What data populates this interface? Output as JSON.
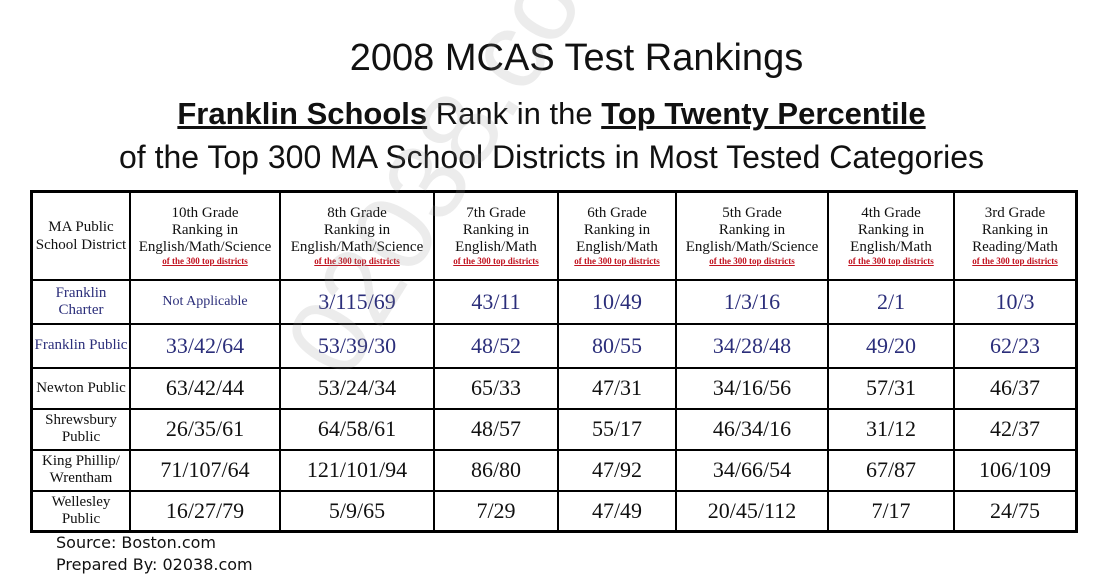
{
  "title": "2008 MCAS Test Rankings",
  "subtitle": {
    "part1": "Franklin Schools",
    "part2": " Rank in the ",
    "part3": "Top Twenty Percentile"
  },
  "subtitle2": "of the Top 300 MA School Districts in Most Tested Categories",
  "watermark": "02038.com",
  "table": {
    "corner": "MA Public School District",
    "headers": [
      {
        "grade": "10th Grade",
        "l1": "Ranking in",
        "l2": "English/Math/Science",
        "sub": "of the 300 top districts"
      },
      {
        "grade": "8th Grade",
        "l1": "Ranking in",
        "l2": "English/Math/Science",
        "sub": "of the 300 top districts"
      },
      {
        "grade": "7th Grade",
        "l1": "Ranking in",
        "l2": "English/Math",
        "sub": "of the 300 top districts"
      },
      {
        "grade": "6th Grade",
        "l1": "Ranking in",
        "l2": "English/Math",
        "sub": "of the 300 top districts"
      },
      {
        "grade": "5th Grade",
        "l1": "Ranking in",
        "l2": "English/Math/Science",
        "sub": "of the 300 top districts"
      },
      {
        "grade": "4th Grade",
        "l1": "Ranking in",
        "l2": "English/Math",
        "sub": "of the 300 top districts"
      },
      {
        "grade": "3rd Grade",
        "l1": "Ranking in",
        "l2": "Reading/Math",
        "sub": "of the 300 top districts"
      }
    ],
    "rows": [
      {
        "district": "Franklin Charter",
        "values": [
          "Not Applicable",
          "3/115/69",
          "43/11",
          "10/49",
          "1/3/16",
          "2/1",
          "10/3"
        ]
      },
      {
        "district": "Franklin Public",
        "values": [
          "33/42/64",
          "53/39/30",
          "48/52",
          "80/55",
          "34/28/48",
          "49/20",
          "62/23"
        ]
      },
      {
        "district": "Newton Public",
        "values": [
          "63/42/44",
          "53/24/34",
          "65/33",
          "47/31",
          "34/16/56",
          "57/31",
          "46/37"
        ]
      },
      {
        "district": "Shrewsbury Public",
        "values": [
          "26/35/61",
          "64/58/61",
          "48/57",
          "55/17",
          "46/34/16",
          "31/12",
          "42/37"
        ]
      },
      {
        "district": "King Phillip/ Wrentham",
        "values": [
          "71/107/64",
          "121/101/94",
          "86/80",
          "47/92",
          "34/66/54",
          "67/87",
          "106/109"
        ]
      },
      {
        "district": "Wellesley Public",
        "values": [
          "16/27/79",
          "5/9/65",
          "7/29",
          "47/49",
          "20/45/112",
          "7/17",
          "24/75"
        ]
      }
    ]
  },
  "source": "Source: Boston.com",
  "prepared": "Prepared By: 02038.com",
  "colors": {
    "franklin": "#2b2e7a",
    "subnote": "#c1121f"
  }
}
